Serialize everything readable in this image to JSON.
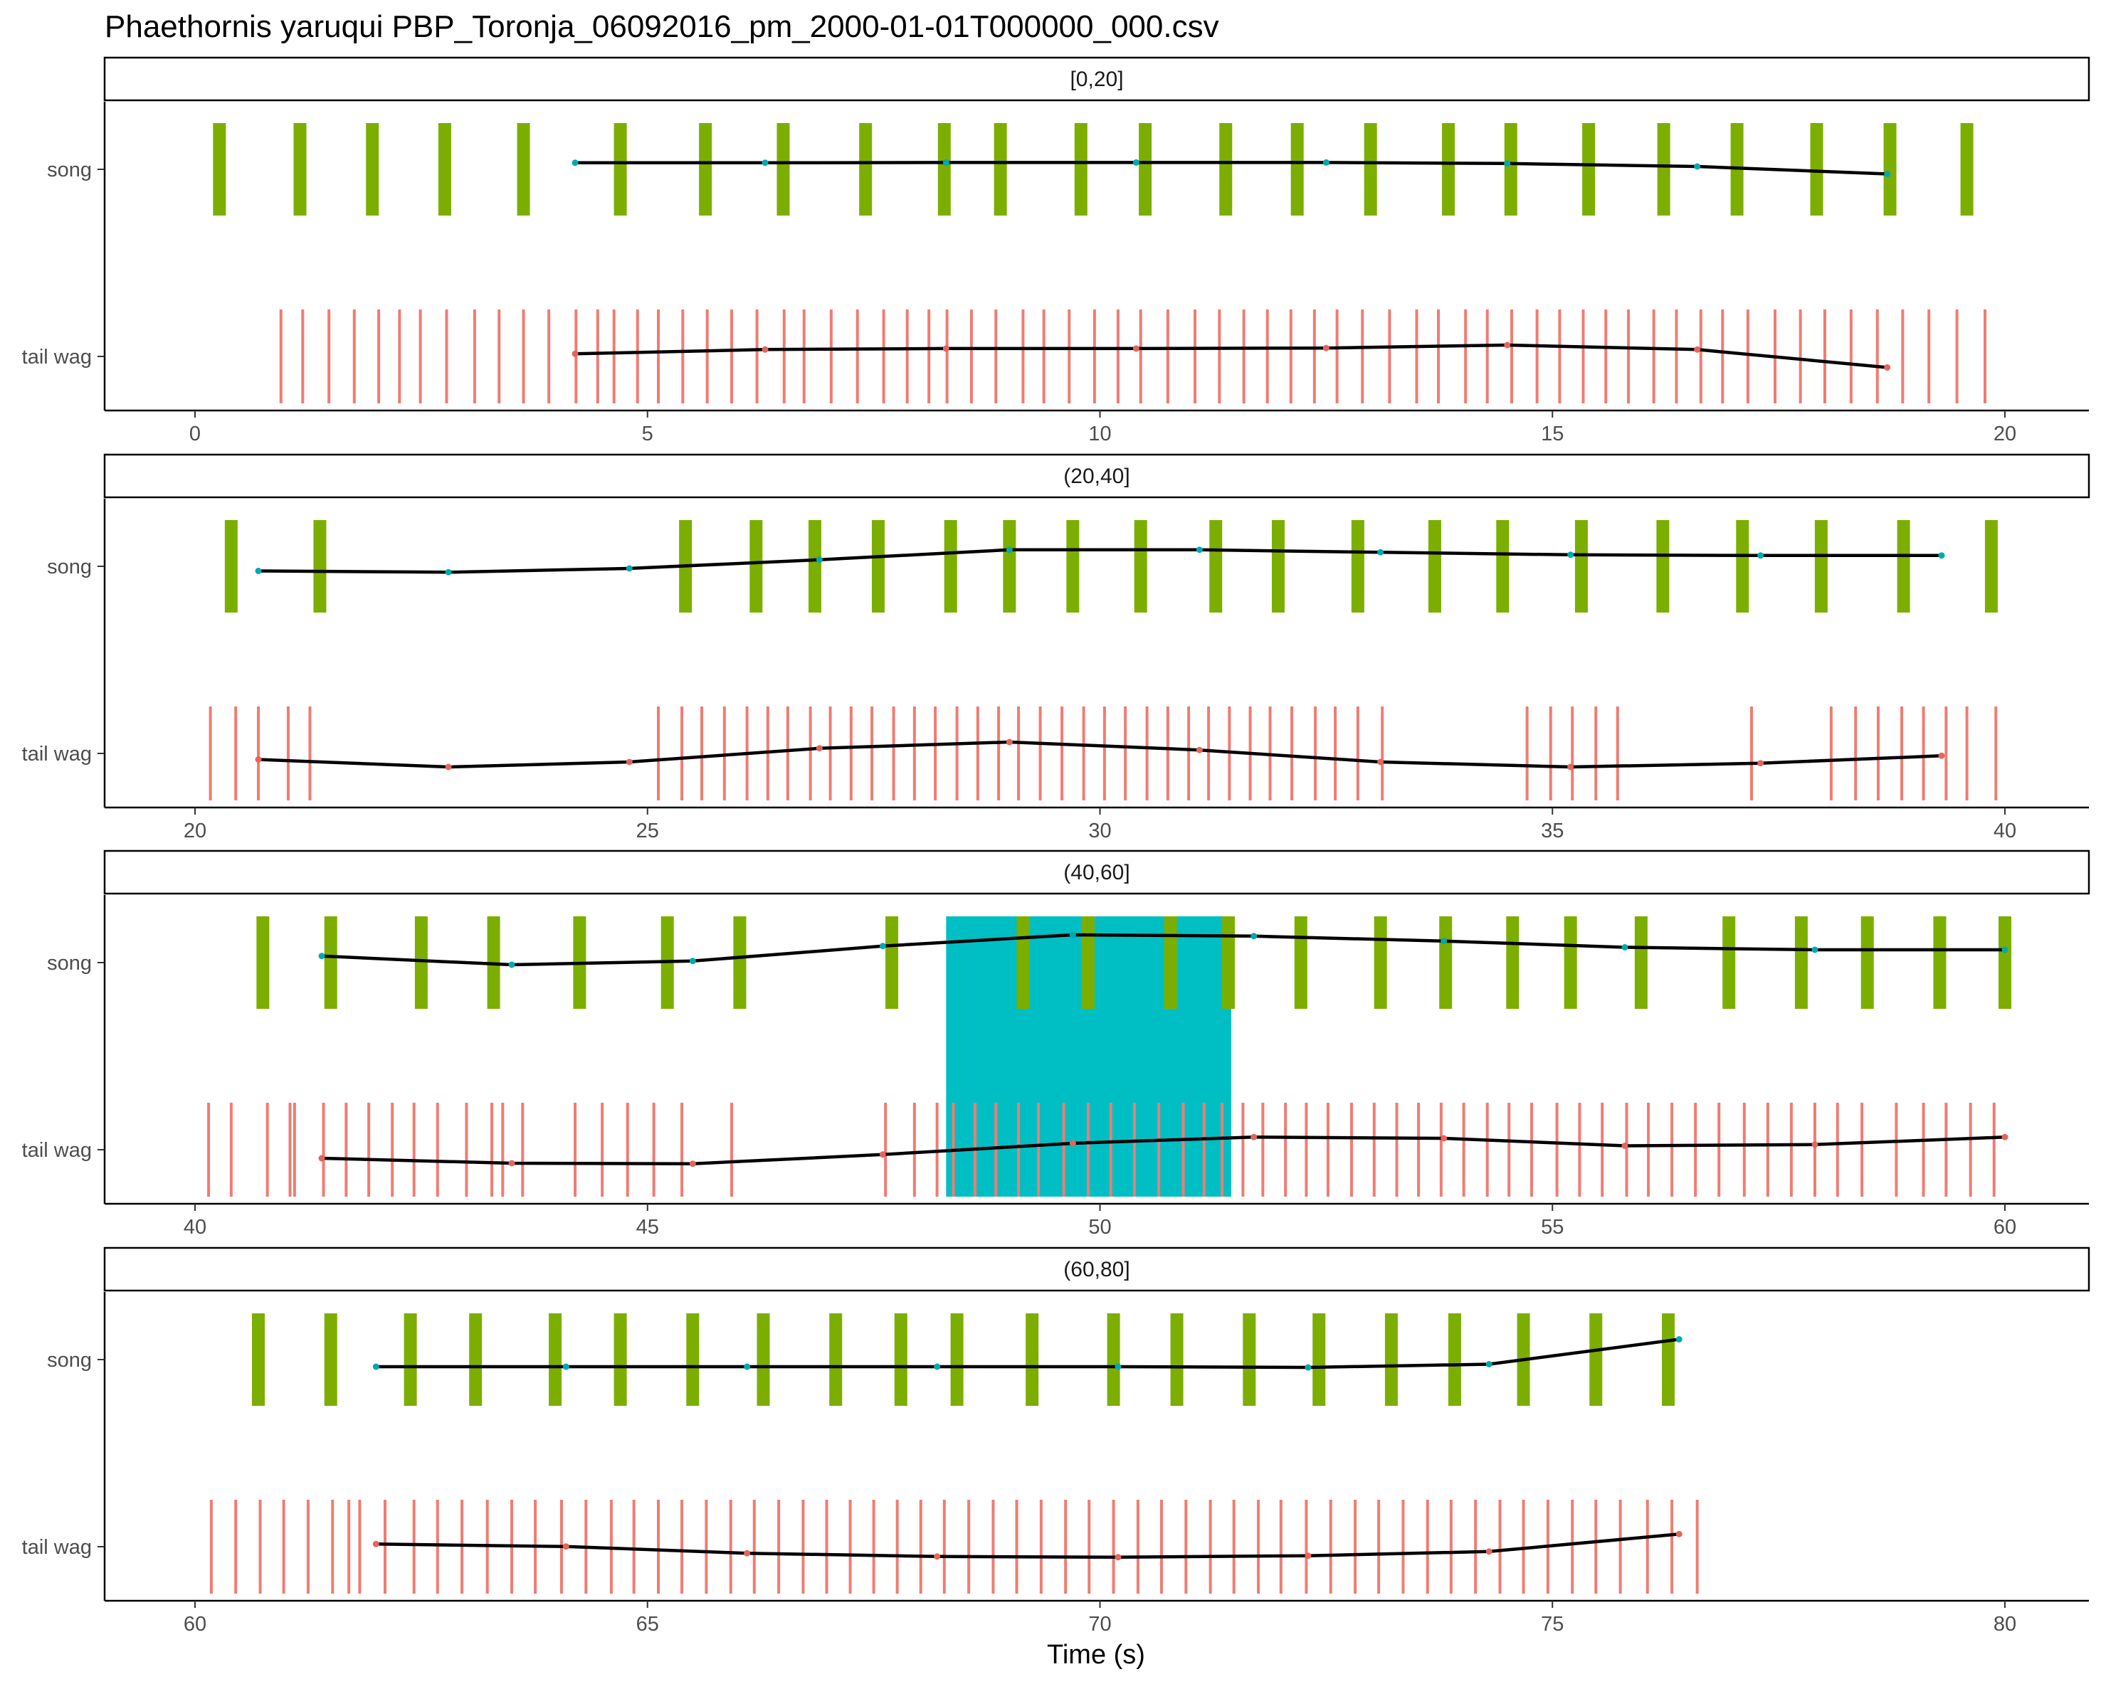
{
  "title": "Phaethornis yaruqui   PBP_Toronja_06092016_pm_2000-01-01T000000_000.csv",
  "chart_data": {
    "type": "event-raster",
    "title": "Phaethornis yaruqui   PBP_Toronja_06092016_pm_2000-01-01T000000_000.csv",
    "xlabel": "Time (s)",
    "ylabel": "",
    "row_labels": [
      "song",
      "tail wag"
    ],
    "colors": {
      "song": "#7cae00",
      "tail_wag": "#f07c72",
      "highlight": "#00bfc4",
      "line": "#000000"
    },
    "grid": false,
    "panels": [
      {
        "label": "[0,20]",
        "xlim": [
          0,
          20
        ],
        "ticks": [
          0,
          5,
          10,
          15,
          20
        ],
        "song": [
          0.27,
          1.16,
          1.96,
          2.76,
          3.63,
          4.7,
          5.64,
          6.5,
          7.41,
          8.28,
          8.9,
          9.79,
          10.5,
          11.39,
          12.18,
          12.99,
          13.85,
          14.54,
          15.4,
          16.23,
          17.04,
          17.92,
          18.73,
          19.58
        ],
        "tail_wag": [
          0.95,
          1.19,
          1.48,
          1.76,
          2.03,
          2.26,
          2.49,
          2.78,
          3.09,
          3.36,
          3.63,
          3.91,
          4.21,
          4.45,
          4.63,
          4.89,
          5.12,
          5.39,
          5.66,
          5.93,
          6.21,
          6.51,
          6.73,
          7.03,
          7.32,
          7.61,
          7.87,
          8.11,
          8.31,
          8.58,
          8.85,
          9.15,
          9.38,
          9.66,
          9.94,
          10.2,
          10.45,
          10.75,
          11.05,
          11.32,
          11.59,
          11.85,
          12.11,
          12.37,
          12.62,
          12.9,
          13.2,
          13.5,
          13.74,
          14.04,
          14.28,
          14.55,
          14.83,
          15.08,
          15.34,
          15.59,
          15.84,
          16.12,
          16.37,
          16.64,
          16.88,
          17.16,
          17.46,
          17.74,
          18.01,
          18.3,
          18.59,
          18.87,
          19.16,
          19.47,
          19.78
        ],
        "song_line": [
          [
            4.2,
            0.55
          ],
          [
            6.3,
            0.55
          ],
          [
            8.3,
            0.56
          ],
          [
            10.4,
            0.56
          ],
          [
            12.5,
            0.56
          ],
          [
            14.5,
            0.52
          ],
          [
            16.6,
            0.4
          ],
          [
            18.7,
            0.1
          ]
        ],
        "tail_line": [
          [
            4.2,
            0.45
          ],
          [
            6.3,
            0.62
          ],
          [
            8.3,
            0.66
          ],
          [
            10.4,
            0.66
          ],
          [
            12.5,
            0.68
          ],
          [
            14.5,
            0.8
          ],
          [
            16.6,
            0.62
          ],
          [
            18.7,
            -0.1
          ]
        ],
        "highlight": null
      },
      {
        "label": "(20,40]",
        "xlim": [
          20,
          40
        ],
        "ticks": [
          20,
          25,
          30,
          35,
          40
        ],
        "song": [
          20.4,
          21.38,
          25.42,
          26.2,
          26.85,
          27.55,
          28.35,
          29.0,
          29.7,
          30.45,
          31.28,
          31.97,
          32.85,
          33.7,
          34.45,
          35.32,
          36.22,
          37.1,
          37.97,
          38.88,
          39.85
        ],
        "tail_wag": [
          20.17,
          20.45,
          20.7,
          21.03,
          21.27,
          25.12,
          25.38,
          25.6,
          25.85,
          26.1,
          26.33,
          26.55,
          26.8,
          27.02,
          27.25,
          27.48,
          27.72,
          27.95,
          28.18,
          28.42,
          28.65,
          28.88,
          29.1,
          29.34,
          29.58,
          29.82,
          30.05,
          30.28,
          30.52,
          30.75,
          30.98,
          31.2,
          31.43,
          31.66,
          31.88,
          32.12,
          32.38,
          32.6,
          32.85,
          33.12,
          34.72,
          34.98,
          35.22,
          35.48,
          35.72,
          37.2,
          38.08,
          38.35,
          38.6,
          38.86,
          39.1,
          39.35,
          39.58,
          39.9
        ],
        "song_line": [
          [
            20.7,
            0.1
          ],
          [
            22.8,
            0.05
          ],
          [
            24.8,
            0.2
          ],
          [
            26.9,
            0.55
          ],
          [
            29.0,
            0.95
          ],
          [
            31.1,
            0.95
          ],
          [
            33.1,
            0.85
          ],
          [
            35.2,
            0.75
          ],
          [
            37.3,
            0.72
          ],
          [
            39.3,
            0.72
          ]
        ],
        "tail_line": [
          [
            20.7,
            0.1
          ],
          [
            22.8,
            -0.2
          ],
          [
            24.8,
            0.0
          ],
          [
            26.9,
            0.55
          ],
          [
            29.0,
            0.8
          ],
          [
            31.1,
            0.48
          ],
          [
            33.1,
            0.0
          ],
          [
            35.2,
            -0.2
          ],
          [
            37.3,
            -0.05
          ],
          [
            39.3,
            0.25
          ]
        ],
        "highlight": null
      },
      {
        "label": "(40,60]",
        "xlim": [
          40,
          60
        ],
        "ticks": [
          40,
          45,
          50,
          55,
          60
        ],
        "song": [
          40.75,
          41.5,
          42.5,
          43.3,
          44.25,
          45.22,
          46.02,
          47.7,
          49.15,
          49.87,
          50.78,
          51.42,
          52.22,
          53.1,
          53.82,
          54.56,
          55.2,
          55.98,
          56.95,
          57.75,
          58.48,
          59.28,
          60.0
        ],
        "tail_wag": [
          40.15,
          40.4,
          40.8,
          41.05,
          41.1,
          41.42,
          41.67,
          41.92,
          42.18,
          42.42,
          42.68,
          43.0,
          43.28,
          43.4,
          43.62,
          44.2,
          44.5,
          44.78,
          45.07,
          45.38,
          45.93,
          47.63,
          47.95,
          48.2,
          48.38,
          48.62,
          48.85,
          49.1,
          49.32,
          49.6,
          49.87,
          50.12,
          50.38,
          50.65,
          50.92,
          51.15,
          51.35,
          51.58,
          51.8,
          52.05,
          52.28,
          52.52,
          52.78,
          53.03,
          53.28,
          53.52,
          53.77,
          54.02,
          54.28,
          54.52,
          54.77,
          55.05,
          55.3,
          55.55,
          55.82,
          56.06,
          56.32,
          56.58,
          56.84,
          57.12,
          57.38,
          57.64,
          57.9,
          58.15,
          58.42,
          58.8,
          59.1,
          59.35,
          59.62,
          59.88
        ],
        "song_line": [
          [
            41.4,
            0.55
          ],
          [
            43.5,
            0.2
          ],
          [
            45.5,
            0.35
          ],
          [
            47.6,
            0.95
          ],
          [
            49.7,
            1.4
          ],
          [
            51.7,
            1.35
          ],
          [
            53.8,
            1.15
          ],
          [
            55.8,
            0.9
          ],
          [
            57.9,
            0.8
          ],
          [
            60.0,
            0.8
          ]
        ],
        "tail_line": [
          [
            41.4,
            0.0
          ],
          [
            43.5,
            -0.2
          ],
          [
            45.5,
            -0.22
          ],
          [
            47.6,
            0.15
          ],
          [
            49.7,
            0.6
          ],
          [
            51.7,
            0.85
          ],
          [
            53.8,
            0.8
          ],
          [
            55.8,
            0.5
          ],
          [
            57.9,
            0.55
          ],
          [
            60.0,
            0.85
          ]
        ],
        "highlight": [
          48.3,
          51.45
        ]
      },
      {
        "label": "(60,80]",
        "xlim": [
          60,
          80
        ],
        "ticks": [
          60,
          65,
          70,
          75,
          80
        ],
        "song": [
          60.7,
          61.5,
          62.38,
          63.1,
          63.98,
          64.7,
          65.5,
          66.28,
          67.08,
          67.8,
          68.42,
          69.25,
          70.15,
          70.85,
          71.65,
          72.42,
          73.22,
          73.92,
          74.68,
          75.48,
          76.28
        ],
        "tail_wag": [
          60.18,
          60.45,
          60.72,
          60.98,
          61.25,
          61.52,
          61.7,
          61.82,
          62.1,
          62.42,
          62.68,
          62.95,
          63.23,
          63.5,
          63.76,
          64.05,
          64.32,
          64.6,
          64.85,
          65.12,
          65.38,
          65.65,
          65.92,
          66.18,
          66.45,
          66.72,
          66.98,
          67.24,
          67.5,
          67.76,
          68.02,
          68.28,
          68.55,
          68.82,
          69.08,
          69.35,
          69.62,
          69.88,
          70.15,
          70.42,
          70.68,
          70.95,
          71.22,
          71.48,
          71.75,
          72.0,
          72.28,
          72.55,
          72.82,
          73.08,
          73.35,
          73.62,
          73.88,
          74.15,
          74.42,
          74.68,
          74.95,
          75.22,
          75.48,
          75.75,
          76.05,
          76.32,
          76.6
        ],
        "song_line": [
          [
            62.0,
            0.0
          ],
          [
            64.1,
            0.0
          ],
          [
            66.1,
            0.0
          ],
          [
            68.2,
            0.0
          ],
          [
            70.2,
            0.0
          ],
          [
            72.3,
            -0.03
          ],
          [
            74.3,
            0.1
          ],
          [
            76.4,
            1.1
          ]
        ],
        "tail_line": [
          [
            62.0,
            0.45
          ],
          [
            64.1,
            0.35
          ],
          [
            66.1,
            0.08
          ],
          [
            68.2,
            -0.05
          ],
          [
            70.2,
            -0.08
          ],
          [
            72.3,
            -0.02
          ],
          [
            74.3,
            0.15
          ],
          [
            76.4,
            0.85
          ]
        ],
        "highlight": null
      }
    ]
  }
}
